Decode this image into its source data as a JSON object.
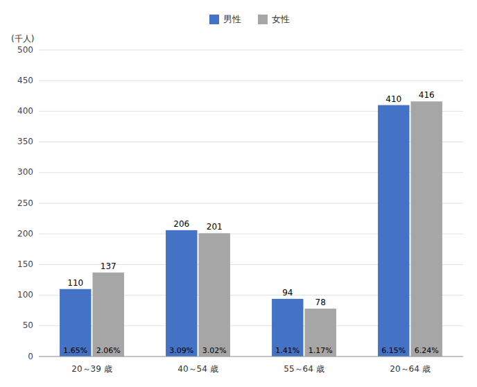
{
  "chart_data": {
    "type": "bar",
    "categories": [
      "20～39 歳",
      "40～54 歳",
      "55～64 歳",
      "20～64 歳"
    ],
    "series": [
      {
        "name": "男性",
        "color": "#4472C4",
        "values": [
          110,
          206,
          94,
          410
        ],
        "shares": [
          1.65,
          3.09,
          1.41,
          6.15
        ],
        "share_labels": [
          "1.65%",
          "3.09%",
          "1.41%",
          "6.15%"
        ]
      },
      {
        "name": "女性",
        "color": "#A6A6A6",
        "values": [
          137,
          201,
          78,
          416
        ],
        "shares": [
          2.06,
          3.02,
          1.17,
          6.24
        ],
        "share_labels": [
          "2.06%",
          "3.02%",
          "1.17%",
          "6.24%"
        ]
      }
    ],
    "ylabel": "(千人)",
    "ylim": [
      0,
      500
    ],
    "yticks": [
      0,
      50,
      100,
      150,
      200,
      250,
      300,
      350,
      400,
      450,
      500
    ],
    "grid": true,
    "legend": "top",
    "data_labels": true
  }
}
